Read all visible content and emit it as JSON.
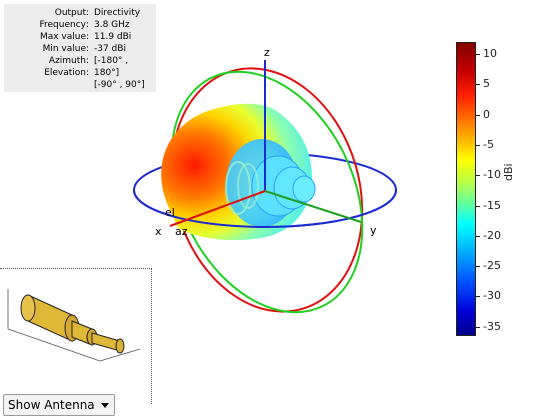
{
  "info": {
    "rows": [
      {
        "key": "Output",
        "value": "Directivity"
      },
      {
        "key": "Frequency",
        "value": "3.8 GHz"
      },
      {
        "key": "Max value",
        "value": "11.9 dBi"
      },
      {
        "key": "Min value",
        "value": "-37 dBi"
      },
      {
        "key": "Azimuth",
        "value": "[-180° ,"
      },
      {
        "key": "Elevation",
        "value": "180°]"
      }
    ],
    "extra": "[-90° , 90°]"
  },
  "axes": {
    "x": "x",
    "y": "y",
    "z": "z",
    "el": "el",
    "az": "az"
  },
  "colorbar": {
    "unit": "dBi",
    "ticks": [
      "10",
      "5",
      "0",
      "-5",
      "-10",
      "-15",
      "-20",
      "-25",
      "-30",
      "-35"
    ]
  },
  "antenna_dropdown": {
    "label": "Show Antenna"
  }
}
